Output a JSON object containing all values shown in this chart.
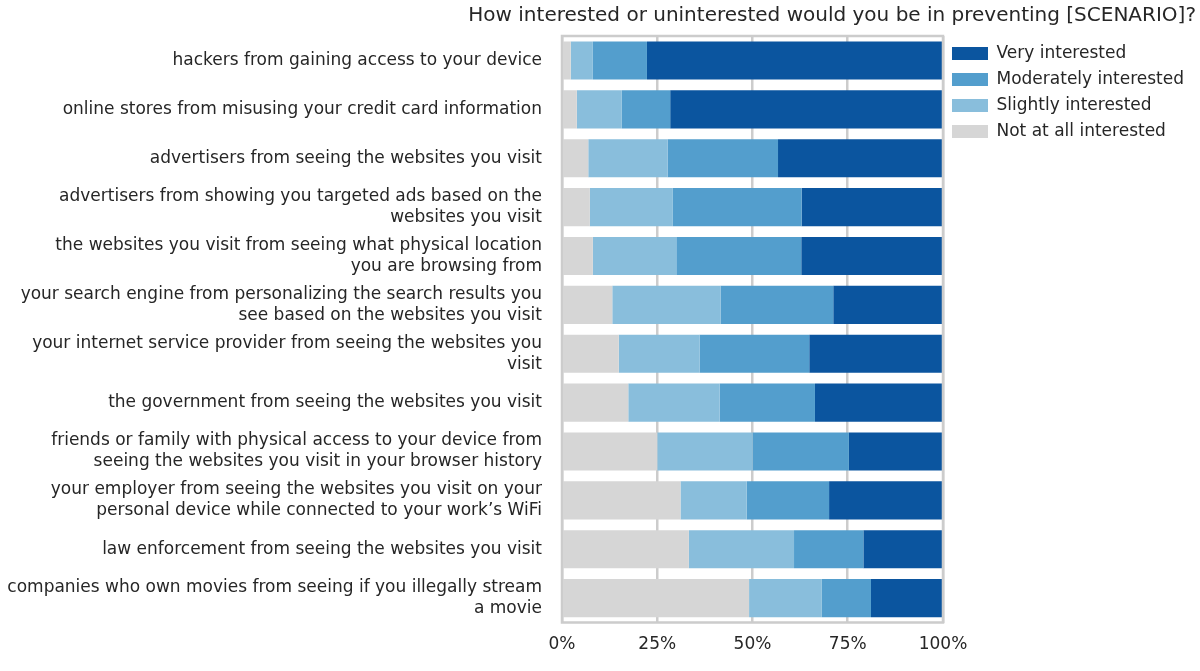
{
  "chart_data": {
    "type": "bar",
    "orientation": "horizontal",
    "stacked": true,
    "title": "How interested or uninterested would you be in preventing [SCENARIO]?",
    "categories": [
      "hackers from gaining access to your device",
      "online stores from misusing your credit card information",
      "advertisers from seeing the websites you visit",
      "advertisers from showing you targeted ads based on the websites you visit",
      "the websites you visit from seeing what physical location you are browsing from",
      "your search engine from personalizing the search results you see based on the websites you visit",
      "your internet service provider from seeing the websites you visit",
      "the government from seeing the websites you visit",
      "friends or family with physical access to your device from seeing the websites you visit in your browser history",
      "your employer from seeing the websites you visit on your personal device while connected to your work’s WiFi",
      "law enforcement from seeing the websites you visit",
      "companies who own movies from seeing if you illegally stream a movie"
    ],
    "series": [
      {
        "name": "Not at all interested",
        "color": "#d6d6d6",
        "values": [
          2.3,
          3.9,
          6.9,
          7.3,
          8.1,
          13.2,
          14.9,
          17.4,
          25.0,
          31.1,
          33.3,
          49.1
        ]
      },
      {
        "name": "Slightly interested",
        "color": "#89bedc",
        "values": [
          5.8,
          11.8,
          20.8,
          21.8,
          21.9,
          28.4,
          21.2,
          24.0,
          25.0,
          17.4,
          27.6,
          19.1
        ]
      },
      {
        "name": "Moderately interested",
        "color": "#539ecd",
        "values": [
          14.2,
          12.7,
          29.0,
          33.8,
          32.8,
          29.6,
          28.8,
          25.0,
          25.3,
          21.6,
          18.2,
          12.9
        ]
      },
      {
        "name": "Very interested",
        "color": "#0b559f",
        "values": [
          77.7,
          71.6,
          43.3,
          37.1,
          37.2,
          28.8,
          35.1,
          33.6,
          24.7,
          29.9,
          20.9,
          18.9
        ]
      }
    ],
    "xlim": [
      0,
      100
    ],
    "xticks": [
      {
        "value": 0,
        "label": "0%"
      },
      {
        "value": 25,
        "label": "25%"
      },
      {
        "value": 50,
        "label": "50%"
      },
      {
        "value": 75,
        "label": "75%"
      },
      {
        "value": 100,
        "label": "100%"
      }
    ],
    "grid": "x",
    "legend": "top right"
  }
}
